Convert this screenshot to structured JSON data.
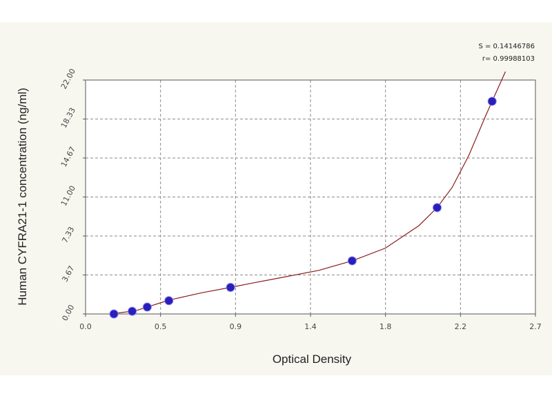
{
  "chart_data": {
    "type": "scatter",
    "xlabel": "Optical Density",
    "ylabel": "Human CYFRA21-1 concentration (ng/ml)",
    "x_ticks": [
      "0.0",
      "0.5",
      "0.9",
      "1.4",
      "1.8",
      "2.2",
      "2.7"
    ],
    "y_ticks": [
      "0.00",
      "3.67",
      "7.33",
      "11.00",
      "14.67",
      "18.33",
      "22.00"
    ],
    "xlim": [
      0.0,
      2.7
    ],
    "ylim": [
      0.0,
      22.0
    ],
    "grid": true,
    "stats": [
      "S = 0.14146786",
      "r= 0.99988103"
    ],
    "series": [
      {
        "type": "scatter",
        "marker_color": "#2a1fb8",
        "x": [
          0.17,
          0.28,
          0.37,
          0.5,
          0.87,
          1.6,
          2.11,
          2.44
        ],
        "y": [
          0.0,
          0.25,
          0.65,
          1.25,
          2.5,
          5.0,
          10.0,
          20.0
        ]
      },
      {
        "type": "line",
        "line_color": "#8b1a1a",
        "x": [
          0.15,
          0.3,
          0.5,
          0.7,
          0.87,
          1.0,
          1.2,
          1.4,
          1.6,
          1.8,
          2.0,
          2.11,
          2.2,
          2.3,
          2.4,
          2.44,
          2.48,
          2.52
        ],
        "y": [
          0.0,
          0.3,
          1.3,
          2.0,
          2.5,
          2.9,
          3.5,
          4.1,
          5.0,
          6.2,
          8.3,
          10.0,
          11.9,
          14.9,
          18.6,
          20.0,
          21.4,
          22.8
        ]
      }
    ]
  }
}
